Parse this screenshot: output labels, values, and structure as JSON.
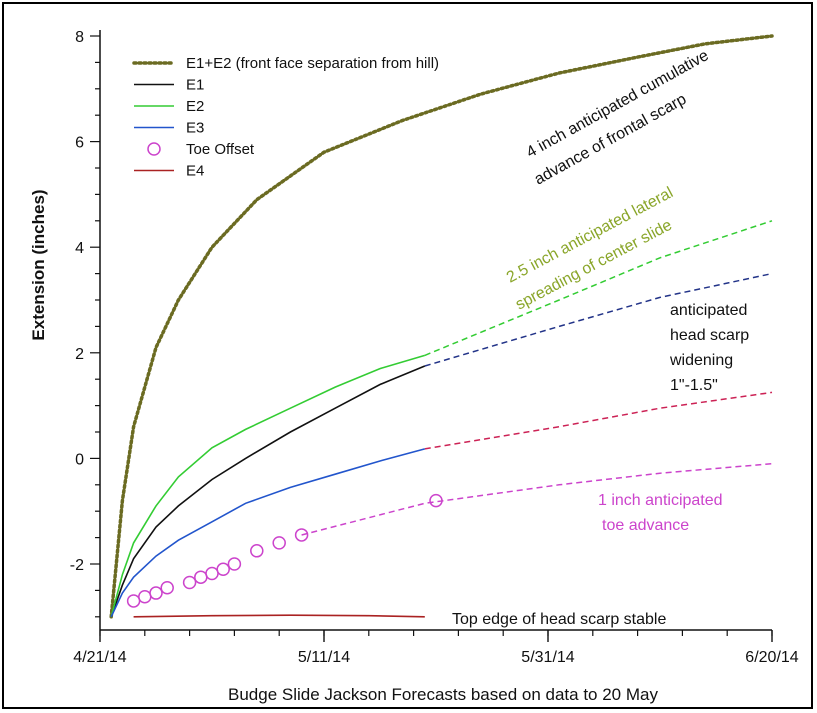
{
  "chart_data": {
    "type": "line",
    "xlabel": "Budge Slide Jackson Forecasts based on data to 20 May",
    "ylabel": "Extension (inches)",
    "xlim": [
      "2014-04-21",
      "2014-06-20"
    ],
    "ylim": [
      -3.2,
      8.1
    ],
    "x_ticks": [
      "4/21/14",
      "5/11/14",
      "5/31/14",
      "6/20/14"
    ],
    "y_ticks": [
      "-2",
      "0",
      "2",
      "4",
      "6",
      "8"
    ],
    "grid": false,
    "legend_position": "top-left",
    "series": [
      {
        "name": "E1+E2 (front face separation from hill)",
        "color": "#6b6b22",
        "style": "dotted",
        "x": [
          "2014-04-22",
          "2014-04-23",
          "2014-04-24",
          "2014-04-26",
          "2014-04-28",
          "2014-05-01",
          "2014-05-05",
          "2014-05-11",
          "2014-05-18",
          "2014-05-25",
          "2014-06-01",
          "2014-06-08",
          "2014-06-14",
          "2014-06-20"
        ],
        "y": [
          -3.0,
          -0.8,
          0.6,
          2.1,
          3.0,
          4.0,
          4.9,
          5.8,
          6.4,
          6.9,
          7.3,
          7.6,
          7.85,
          8.0
        ]
      },
      {
        "name": "E1",
        "color": "#111111",
        "style": "solid",
        "x": [
          "2014-04-22",
          "2014-04-23",
          "2014-04-24",
          "2014-04-26",
          "2014-04-28",
          "2014-05-01",
          "2014-05-04",
          "2014-05-08",
          "2014-05-12",
          "2014-05-16",
          "2014-05-20"
        ],
        "y": [
          -3.0,
          -2.4,
          -1.9,
          -1.3,
          -0.9,
          -0.4,
          0.0,
          0.5,
          0.95,
          1.4,
          1.75
        ]
      },
      {
        "name": "E2",
        "color": "#33cc33",
        "style": "solid",
        "x": [
          "2014-04-22",
          "2014-04-23",
          "2014-04-24",
          "2014-04-26",
          "2014-04-28",
          "2014-05-01",
          "2014-05-04",
          "2014-05-08",
          "2014-05-12",
          "2014-05-16",
          "2014-05-20"
        ],
        "y": [
          -3.0,
          -2.2,
          -1.6,
          -0.9,
          -0.35,
          0.2,
          0.55,
          0.95,
          1.35,
          1.7,
          1.95
        ]
      },
      {
        "name": "E3",
        "color": "#2255cc",
        "style": "solid",
        "x": [
          "2014-04-22",
          "2014-04-23",
          "2014-04-24",
          "2014-04-26",
          "2014-04-28",
          "2014-05-01",
          "2014-05-04",
          "2014-05-08",
          "2014-05-12",
          "2014-05-16",
          "2014-05-20"
        ],
        "y": [
          -3.0,
          -2.55,
          -2.25,
          -1.85,
          -1.55,
          -1.2,
          -0.85,
          -0.55,
          -0.3,
          -0.05,
          0.18
        ]
      },
      {
        "name": "Toe Offset",
        "color": "#cc44cc",
        "style": "markers",
        "x": [
          "2014-04-24",
          "2014-04-25",
          "2014-04-26",
          "2014-04-27",
          "2014-04-29",
          "2014-04-30",
          "2014-05-01",
          "2014-05-02",
          "2014-05-03",
          "2014-05-05",
          "2014-05-07",
          "2014-05-09",
          "2014-05-21"
        ],
        "y": [
          -2.7,
          -2.62,
          -2.55,
          -2.45,
          -2.35,
          -2.25,
          -2.18,
          -2.1,
          -2.0,
          -1.75,
          -1.6,
          -1.45,
          -0.8
        ]
      },
      {
        "name": "E4",
        "color": "#aa2222",
        "style": "solid",
        "x": [
          "2014-04-24",
          "2014-05-01",
          "2014-05-08",
          "2014-05-15",
          "2014-05-20"
        ],
        "y": [
          -3.0,
          -2.98,
          -2.97,
          -2.98,
          -3.0
        ]
      }
    ],
    "forecasts": [
      {
        "name": "E2 forecast",
        "color": "#33cc33",
        "x": [
          "2014-05-20",
          "2014-06-01",
          "2014-06-10",
          "2014-06-20"
        ],
        "y": [
          1.95,
          3.0,
          3.8,
          4.5
        ]
      },
      {
        "name": "E1 forecast",
        "color": "#223388",
        "x": [
          "2014-05-20",
          "2014-06-01",
          "2014-06-10",
          "2014-06-20"
        ],
        "y": [
          1.75,
          2.5,
          3.05,
          3.5
        ]
      },
      {
        "name": "E3 forecast",
        "color": "#cc2255",
        "x": [
          "2014-05-20",
          "2014-06-01",
          "2014-06-10",
          "2014-06-20"
        ],
        "y": [
          0.18,
          0.6,
          0.95,
          1.25
        ]
      },
      {
        "name": "Toe forecast",
        "color": "#cc44cc",
        "x": [
          "2014-05-09",
          "2014-05-20",
          "2014-06-01",
          "2014-06-10",
          "2014-06-20"
        ],
        "y": [
          -1.45,
          -0.85,
          -0.5,
          -0.28,
          -0.1
        ]
      }
    ],
    "annotations": [
      {
        "text": "4 inch anticipated cumulative",
        "color": "#111111"
      },
      {
        "text": "advance of frontal scarp",
        "color": "#111111"
      },
      {
        "text": "2.5 inch anticipated lateral",
        "color": "#8aa62a"
      },
      {
        "text": "spreading of center slide",
        "color": "#8aa62a"
      },
      {
        "text": "anticipated",
        "color": "#111111"
      },
      {
        "text": "head scarp",
        "color": "#111111"
      },
      {
        "text": "widening",
        "color": "#111111"
      },
      {
        "text": "1\"-1.5\"",
        "color": "#111111"
      },
      {
        "text": "1 inch anticipated",
        "color": "#cc44cc"
      },
      {
        "text": "toe advance",
        "color": "#cc44cc"
      },
      {
        "text": "Top edge of head scarp stable",
        "color": "#111111"
      }
    ]
  }
}
